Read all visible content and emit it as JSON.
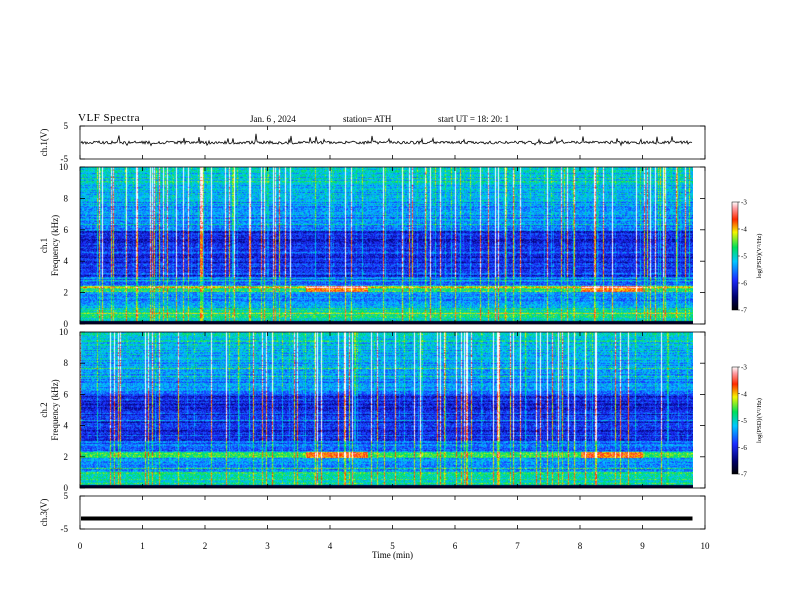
{
  "header": {
    "title": "VLF  Spectra",
    "date": "Jan. 6  , 2024",
    "station": "station= ATH",
    "start": "start  UT  =   18: 20: 1"
  },
  "chart_data": [
    {
      "type": "line",
      "panel": "ch1-waveform",
      "ylabel": "ch.1(V)",
      "yticks": [
        "5",
        "-5"
      ],
      "ylim": [
        -5,
        5
      ],
      "xlim": [
        0,
        10
      ],
      "series": [
        {
          "description_values": "noisy waveform near 0 V with sferic spikes",
          "baseline": 0,
          "x_end": 9.8
        }
      ]
    },
    {
      "type": "heatmap",
      "panel": "ch1-spectrogram",
      "ylabel": "ch.1\nFrequency (kHz)",
      "ylabel_lines": [
        "ch.1",
        "Frequency (kHz)"
      ],
      "yticks": [
        "0",
        "2",
        "4",
        "6",
        "8",
        "10"
      ],
      "ylim": [
        0,
        10
      ],
      "xlim": [
        0,
        9.8
      ],
      "colorbar": {
        "label": "log(PSD)(V²/Hz)",
        "ticks": [
          "-3",
          "-4",
          "-5",
          "-6",
          "-7"
        ],
        "range": [
          -7,
          -3
        ]
      },
      "features": {
        "strong_band_khz": [
          2.0,
          2.4
        ],
        "low_band_khz": [
          0,
          1.0
        ],
        "hot_segments_min": [
          [
            3.6,
            4.6
          ],
          [
            8.0,
            9.0
          ]
        ]
      }
    },
    {
      "type": "heatmap",
      "panel": "ch2-spectrogram",
      "ylabel": "ch.2\nFrequency (kHz)",
      "ylabel_lines": [
        "ch.2",
        "Frequency (kHz)"
      ],
      "yticks": [
        "0",
        "2",
        "4",
        "6",
        "8",
        "10"
      ],
      "ylim": [
        0,
        10
      ],
      "xlim": [
        0,
        9.8
      ],
      "colorbar": {
        "label": "log(PSD)(V²/Hz)",
        "ticks": [
          "-3",
          "-4",
          "-5",
          "-6",
          "-7"
        ],
        "range": [
          -7,
          -3
        ]
      },
      "features": {
        "strong_band_khz": [
          1.9,
          2.3
        ],
        "low_band_khz": [
          0,
          1.0
        ],
        "hot_segments_min": [
          [
            3.6,
            4.6
          ],
          [
            8.0,
            9.0
          ]
        ]
      }
    },
    {
      "type": "line",
      "panel": "ch3-waveform",
      "ylabel": "ch.3(V)",
      "yticks": [
        "5",
        "-5"
      ],
      "ylim": [
        -5,
        5
      ],
      "xlim": [
        0,
        10
      ],
      "series": [
        {
          "description_values": "flat thick trace",
          "baseline": -1.8,
          "x_end": 9.8
        }
      ]
    }
  ],
  "xaxis": {
    "label": "Time  (min)",
    "ticks": [
      "0",
      "1",
      "2",
      "3",
      "4",
      "5",
      "6",
      "7",
      "8",
      "9",
      "10"
    ],
    "range": [
      0,
      10
    ]
  },
  "colors": {
    "frame": "#000000",
    "background": "#ffffff"
  }
}
